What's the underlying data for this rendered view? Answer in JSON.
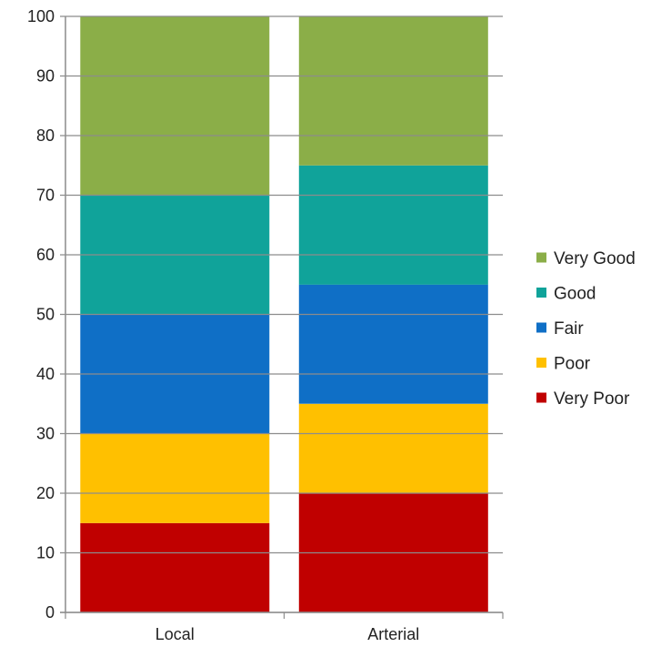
{
  "chart_data": {
    "type": "bar",
    "stacked": true,
    "title": "",
    "xlabel": "",
    "ylabel": "",
    "categories": [
      "Local",
      "Arterial"
    ],
    "series": [
      {
        "name": "Very Poor",
        "values": [
          15,
          20
        ],
        "color": "#c00000"
      },
      {
        "name": "Poor",
        "values": [
          15,
          15
        ],
        "color": "#ffc000"
      },
      {
        "name": "Fair",
        "values": [
          20,
          20
        ],
        "color": "#0f6fc6"
      },
      {
        "name": "Good",
        "values": [
          20,
          20
        ],
        "color": "#10a39a"
      },
      {
        "name": "Very Good",
        "values": [
          30,
          25
        ],
        "color": "#8bae48"
      }
    ],
    "ylim": [
      0,
      100
    ],
    "yticks": [
      "0",
      "10",
      "20",
      "30",
      "40",
      "50",
      "60",
      "70",
      "80",
      "90",
      "100"
    ],
    "grid": false,
    "legend_position": "right"
  }
}
